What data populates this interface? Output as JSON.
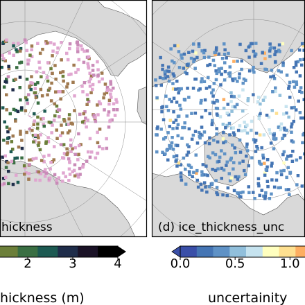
{
  "chart_data": [
    {
      "type": "heatmap",
      "panel": "left",
      "panel_label": "hickness",
      "colorbar": {
        "label": "hickness (m)",
        "ticks": [
          "2",
          "3",
          "4"
        ],
        "tick_values": [
          2,
          3,
          4
        ],
        "range": [
          0,
          4
        ],
        "extend": "max",
        "colors": [
          "#c98bb8",
          "#e0a6d0",
          "#a07a50",
          "#6c7f3a",
          "#3a6f43",
          "#1d5a52",
          "#1f2d4a",
          "#1a1226",
          "#000000"
        ]
      }
    },
    {
      "type": "heatmap",
      "panel": "right",
      "panel_label": "(d) ice_thickness_unc",
      "colorbar": {
        "label": "uncertainity",
        "ticks": [
          "0.0",
          "0.5",
          "1.0"
        ],
        "tick_values": [
          0.0,
          0.5,
          1.0
        ],
        "range": [
          0,
          1.2
        ],
        "extend": "min",
        "colors": [
          "#3a4fa8",
          "#4575b4",
          "#5f92c6",
          "#91bfdb",
          "#c6e3ef",
          "#ffffbf",
          "#fee090",
          "#fdae61"
        ]
      }
    }
  ]
}
